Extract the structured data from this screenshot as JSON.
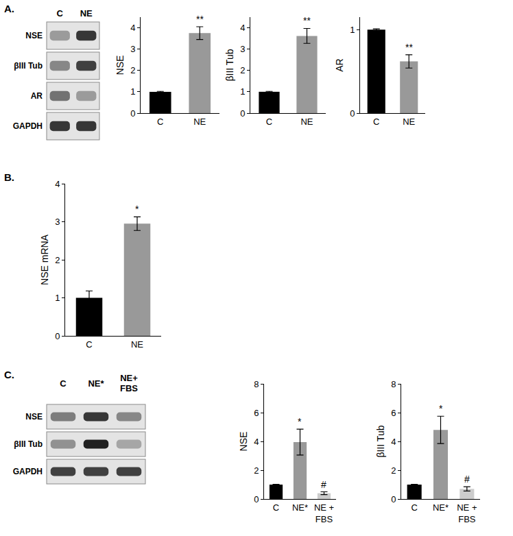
{
  "chart_data": [
    {
      "type": "bar",
      "ylabel": "NSE",
      "categories": [
        "C",
        "NE"
      ],
      "values": [
        1,
        3.75
      ],
      "errors": [
        0.02,
        0.3
      ],
      "colors": [
        "#000000",
        "#999999"
      ],
      "ylim": [
        0,
        4.5
      ],
      "yticks": [
        0,
        1,
        2,
        3,
        4
      ],
      "grid": false,
      "annotations": [
        {
          "category": "NE",
          "text": "**"
        }
      ]
    },
    {
      "type": "bar",
      "ylabel": "βIII Tub",
      "categories": [
        "C",
        "NE"
      ],
      "values": [
        1,
        3.62
      ],
      "errors": [
        0.02,
        0.35
      ],
      "colors": [
        "#000000",
        "#999999"
      ],
      "ylim": [
        0,
        4.5
      ],
      "yticks": [
        0,
        1,
        2,
        3,
        4
      ],
      "grid": false,
      "annotations": [
        {
          "category": "NE",
          "text": "**"
        }
      ]
    },
    {
      "type": "bar",
      "ylabel": "AR",
      "categories": [
        "C",
        "NE"
      ],
      "values": [
        1,
        0.62
      ],
      "errors": [
        0.01,
        0.08
      ],
      "colors": [
        "#000000",
        "#999999"
      ],
      "ylim": [
        0,
        1.15
      ],
      "yticks": [
        0,
        1
      ],
      "grid": false,
      "annotations": [
        {
          "category": "NE",
          "text": "**"
        }
      ]
    },
    {
      "type": "bar",
      "ylabel": "NSE mRNA",
      "categories": [
        "C",
        "NE"
      ],
      "values": [
        1,
        2.95
      ],
      "errors": [
        0.18,
        0.18
      ],
      "colors": [
        "#000000",
        "#999999"
      ],
      "ylim": [
        0,
        4
      ],
      "yticks": [
        0,
        1,
        2,
        3,
        4
      ],
      "grid": false,
      "annotations": [
        {
          "category": "NE",
          "text": "*"
        }
      ]
    },
    {
      "type": "bar",
      "ylabel": "NSE",
      "categories": [
        "C",
        "NE*",
        "NE +\nFBS"
      ],
      "values": [
        1,
        3.95,
        0.4
      ],
      "errors": [
        0.02,
        0.9,
        0.1
      ],
      "colors": [
        "#000000",
        "#999999",
        "#cccccc"
      ],
      "ylim": [
        0,
        8
      ],
      "yticks": [
        0,
        2,
        4,
        6,
        8
      ],
      "grid": false,
      "annotations": [
        {
          "category": "NE*",
          "text": "*"
        },
        {
          "category": "NE +\nFBS",
          "text": "#"
        }
      ]
    },
    {
      "type": "bar",
      "ylabel": "βIII Tub",
      "categories": [
        "C",
        "NE*",
        "NE +\nFBS"
      ],
      "values": [
        1,
        4.8,
        0.7
      ],
      "errors": [
        0.02,
        0.95,
        0.15
      ],
      "colors": [
        "#000000",
        "#999999",
        "#cccccc"
      ],
      "ylim": [
        0,
        8
      ],
      "yticks": [
        0,
        2,
        4,
        6,
        8
      ],
      "grid": false,
      "annotations": [
        {
          "category": "NE*",
          "text": "*"
        },
        {
          "category": "NE +\nFBS",
          "text": "#"
        }
      ]
    }
  ],
  "figure": {
    "panel_labels": [
      "A.",
      "B.",
      "C."
    ],
    "blots": [
      {
        "lanes": [
          "C",
          "NE"
        ],
        "rows": [
          {
            "label": "NSE",
            "band_intensity": [
              0.35,
              0.85
            ]
          },
          {
            "label": "βIII Tub",
            "band_intensity": [
              0.45,
              0.8
            ]
          },
          {
            "label": "AR",
            "band_intensity": [
              0.55,
              0.35
            ]
          },
          {
            "label": "GAPDH",
            "band_intensity": [
              0.85,
              0.85
            ]
          }
        ]
      },
      {
        "lanes": [
          "C",
          "NE*",
          "NE+\nFBS"
        ],
        "rows": [
          {
            "label": "NSE",
            "band_intensity": [
              0.5,
              0.85,
              0.45
            ]
          },
          {
            "label": "βIII Tub",
            "band_intensity": [
              0.4,
              0.95,
              0.3
            ]
          },
          {
            "label": "GAPDH",
            "band_intensity": [
              0.8,
              0.8,
              0.8
            ]
          }
        ]
      }
    ]
  }
}
